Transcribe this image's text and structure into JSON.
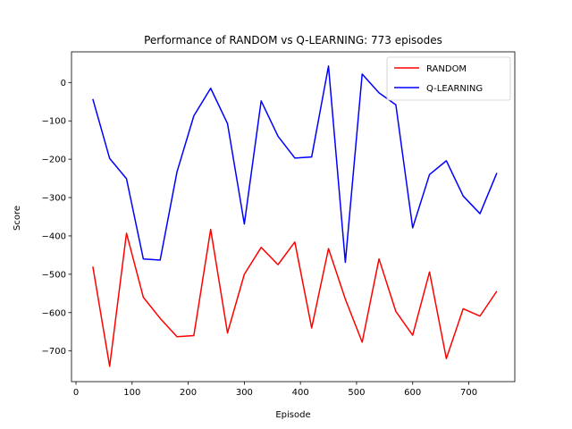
{
  "chart_data": {
    "type": "line",
    "title": "Performance of RANDOM vs Q-LEARNING: 773 episodes",
    "xlabel": "Episode",
    "ylabel": "Score",
    "xlim": [
      -8,
      782
    ],
    "ylim": [
      -780,
      80
    ],
    "xticks": [
      0,
      100,
      200,
      300,
      400,
      500,
      600,
      700
    ],
    "yticks": [
      0,
      -100,
      -200,
      -300,
      -400,
      -500,
      -600,
      -700
    ],
    "legend_position": "top-right",
    "x": [
      30,
      60,
      90,
      120,
      150,
      180,
      210,
      240,
      270,
      300,
      330,
      360,
      390,
      420,
      450,
      480,
      510,
      540,
      570,
      600,
      630,
      660,
      690,
      720,
      750
    ],
    "series": [
      {
        "name": "RANDOM",
        "color": "#ff0000",
        "values": [
          -480,
          -740,
          -393,
          -560,
          -615,
          -663,
          -660,
          -383,
          -653,
          -500,
          -430,
          -475,
          -416,
          -640,
          -433,
          -565,
          -677,
          -460,
          -597,
          -659,
          -494,
          -720,
          -590,
          -609,
          -544
        ]
      },
      {
        "name": "Q-LEARNING",
        "color": "#0000ff",
        "values": [
          -43,
          -198,
          -251,
          -460,
          -463,
          -233,
          -87,
          -15,
          -107,
          -369,
          -48,
          -140,
          -197,
          -194,
          43,
          -469,
          22,
          -27,
          -58,
          -379,
          -240,
          -204,
          -296,
          -342,
          -236
        ]
      }
    ]
  }
}
